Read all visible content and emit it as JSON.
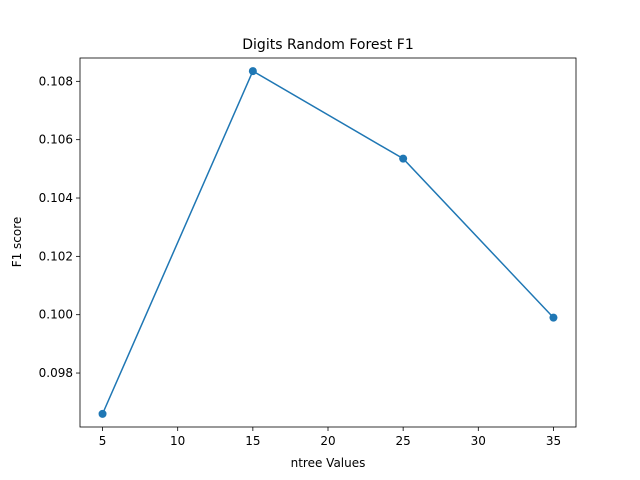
{
  "chart_data": {
    "type": "line",
    "title": "Digits Random Forest F1",
    "xlabel": "ntree Values",
    "ylabel": "F1 score",
    "x": [
      5,
      15,
      25,
      35
    ],
    "series": [
      {
        "values": [
          0.0966,
          0.10835,
          0.10535,
          0.0999
        ]
      }
    ],
    "xlim": [
      3.5,
      36.5
    ],
    "ylim": [
      0.09615,
      0.1088
    ],
    "xticks": [
      5,
      10,
      15,
      20,
      25,
      30,
      35
    ],
    "yticks": [
      0.098,
      0.1,
      0.102,
      0.104,
      0.106,
      0.108
    ],
    "xtick_labels": [
      "5",
      "10",
      "15",
      "20",
      "25",
      "30",
      "35"
    ],
    "ytick_labels": [
      "0.098",
      "0.100",
      "0.102",
      "0.104",
      "0.106",
      "0.108"
    ],
    "grid": false,
    "marker": "circle",
    "color": "#1f77b4"
  }
}
